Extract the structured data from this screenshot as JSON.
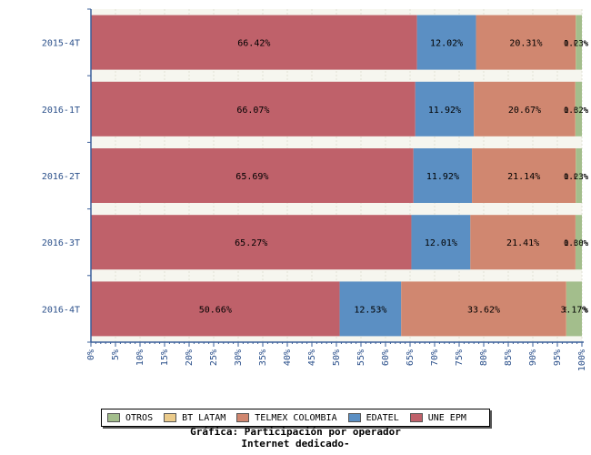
{
  "chart_data": {
    "type": "bar",
    "orientation": "horizontal",
    "stacked": true,
    "title": "Gráfica: Participación por operador",
    "subtitle": "Internet dedicado-",
    "categories": [
      "2015-4T",
      "2016-1T",
      "2016-2T",
      "2016-3T",
      "2016-4T"
    ],
    "xlim": [
      0,
      100
    ],
    "xticks": [
      0,
      5,
      10,
      15,
      20,
      25,
      30,
      35,
      40,
      45,
      50,
      55,
      60,
      65,
      70,
      75,
      80,
      85,
      90,
      95,
      100
    ],
    "xtick_suffix": "%",
    "grid": true,
    "legend_position": "bottom",
    "series": [
      {
        "name": "UNE EPM",
        "color": "#bf616a",
        "values": [
          66.42,
          66.07,
          65.69,
          65.27,
          50.66
        ],
        "labels": [
          "66.42%",
          "66.07%",
          "65.69%",
          "65.27%",
          "50.66%"
        ]
      },
      {
        "name": "EDATEL",
        "color": "#5b8fc3",
        "values": [
          12.02,
          11.92,
          11.92,
          12.01,
          12.53
        ],
        "labels": [
          "12.02%",
          "11.92%",
          "11.92%",
          "12.01%",
          "12.53%"
        ]
      },
      {
        "name": "TELMEX COLOMBIA",
        "color": "#d08770",
        "values": [
          20.31,
          20.67,
          21.14,
          21.41,
          33.62
        ],
        "labels": [
          "20.31%",
          "20.67%",
          "21.14%",
          "21.41%",
          "33.62%"
        ]
      },
      {
        "name": "BT LATAM",
        "color": "#ebcb8b",
        "values": [
          0.02,
          0.02,
          0.02,
          0.02,
          0.02
        ],
        "labels": [
          "0.02%",
          "0.02%",
          "0.02%",
          "0.02%",
          "0.02%"
        ]
      },
      {
        "name": "OTROS",
        "color": "#a3be8c",
        "values": [
          1.23,
          1.32,
          1.23,
          1.3,
          3.17
        ],
        "labels": [
          "1.23%",
          "1.32%",
          "1.23%",
          "1.30%",
          "3.17%"
        ]
      }
    ],
    "legend_order": [
      "OTROS",
      "BT LATAM",
      "TELMEX COLOMBIA",
      "EDATEL",
      "UNE EPM"
    ]
  }
}
